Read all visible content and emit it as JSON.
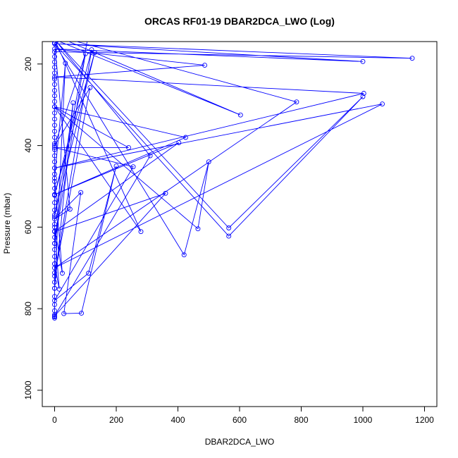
{
  "chart_data": {
    "type": "line",
    "title": "ORCAS RF01-19 DBAR2DCA_LWO (Log)",
    "xlabel": "DBAR2DCA_LWO",
    "ylabel": "Pressure (mbar)",
    "xlim": [
      -40,
      1240
    ],
    "ylim": [
      1040,
      145
    ],
    "y_reversed": true,
    "grid": false,
    "legend": "none",
    "x_ticks": [
      0,
      200,
      400,
      600,
      800,
      1000,
      1200
    ],
    "y_ticks": [
      200,
      400,
      600,
      800,
      1000
    ],
    "marker": "open-circle",
    "series": [
      {
        "color": "#0000ff",
        "points": [
          [
            0,
            823
          ],
          [
            0,
            815
          ],
          [
            0,
            805
          ],
          [
            0,
            790
          ],
          [
            0,
            770
          ],
          [
            0,
            750
          ],
          [
            0,
            735
          ],
          [
            0,
            712
          ],
          [
            0,
            690
          ],
          [
            0,
            672
          ],
          [
            0,
            655
          ],
          [
            0,
            640
          ],
          [
            0,
            625
          ],
          [
            0,
            610
          ],
          [
            0,
            593
          ],
          [
            0,
            575
          ],
          [
            0,
            558
          ],
          [
            0,
            540
          ],
          [
            0,
            522
          ],
          [
            0,
            505
          ],
          [
            0,
            488
          ],
          [
            0,
            470
          ],
          [
            0,
            455
          ],
          [
            0,
            440
          ],
          [
            0,
            425
          ],
          [
            0,
            410
          ],
          [
            0,
            395
          ],
          [
            0,
            380
          ],
          [
            0,
            365
          ],
          [
            0,
            350
          ],
          [
            0,
            335
          ],
          [
            0,
            320
          ],
          [
            0,
            305
          ],
          [
            0,
            292
          ],
          [
            0,
            278
          ],
          [
            0,
            265
          ],
          [
            0,
            250
          ],
          [
            0,
            237
          ],
          [
            0,
            222
          ],
          [
            0,
            208
          ],
          [
            0,
            195
          ],
          [
            0,
            182
          ],
          [
            0,
            170
          ],
          [
            1160,
            186
          ],
          [
            0,
            150
          ],
          [
            1000,
            194
          ],
          [
            0,
            163
          ],
          [
            487,
            203
          ],
          [
            0,
            232
          ],
          [
            1003,
            272
          ],
          [
            0,
            455
          ],
          [
            1063,
            298
          ],
          [
            0,
            700
          ],
          [
            785,
            293
          ],
          [
            0,
            130
          ],
          [
            603,
            325
          ],
          [
            0,
            140
          ],
          [
            565,
            602
          ],
          [
            1000,
            280
          ],
          [
            565,
            622
          ],
          [
            0,
            150
          ],
          [
            420,
            668
          ],
          [
            500,
            440
          ],
          [
            465,
            604
          ],
          [
            0,
            305
          ],
          [
            425,
            380
          ],
          [
            0,
            520
          ],
          [
            403,
            393
          ],
          [
            0,
            611
          ],
          [
            360,
            517
          ],
          [
            0,
            818
          ],
          [
            310,
            425
          ],
          [
            0,
            140
          ],
          [
            280,
            611
          ],
          [
            0,
            305
          ],
          [
            240,
            405
          ],
          [
            0,
            405
          ],
          [
            255,
            452
          ],
          [
            0,
            780
          ],
          [
            110,
            713
          ],
          [
            200,
            450
          ],
          [
            87,
            811
          ],
          [
            30,
            812
          ],
          [
            85,
            515
          ],
          [
            0,
            580
          ],
          [
            50,
            556
          ],
          [
            0,
            148
          ],
          [
            110,
            127
          ],
          [
            0,
            570
          ],
          [
            130,
            172
          ],
          [
            0,
            520
          ],
          [
            120,
            165
          ],
          [
            0,
            720
          ],
          [
            115,
            258
          ],
          [
            0,
            400
          ],
          [
            100,
            175
          ],
          [
            0,
            640
          ],
          [
            60,
            295
          ],
          [
            0,
            750
          ],
          [
            35,
            198
          ],
          [
            0,
            480
          ],
          [
            25,
            713
          ],
          [
            0,
            600
          ],
          [
            15,
            752
          ],
          [
            0,
            690
          ],
          [
            0,
            820
          ]
        ]
      }
    ]
  }
}
